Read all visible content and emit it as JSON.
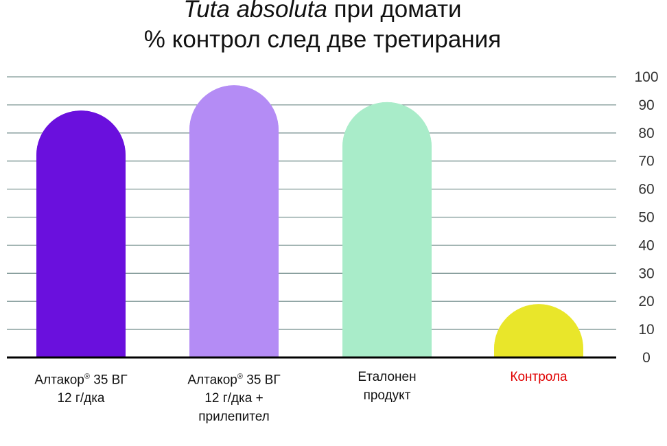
{
  "title": {
    "species": "Tuta absoluta",
    "rest": " при домати",
    "line2": "% контрол след две третирания"
  },
  "chart_data": {
    "type": "bar",
    "categories": [
      {
        "lines": [
          "Алтакор",
          "12 г/дка"
        ],
        "sup": "®",
        "sup_suffix": " 35 ВГ"
      },
      {
        "lines": [
          "Алтакор",
          "12 г/дка +",
          "прилепител"
        ],
        "sup": "®",
        "sup_suffix": " 35 ВГ"
      },
      {
        "lines": [
          "Еталонен",
          "продукт"
        ]
      },
      {
        "lines": [
          "Контрола"
        ]
      }
    ],
    "values": [
      88,
      97,
      91,
      19
    ],
    "colors": [
      "#6a10dd",
      "#b48cf5",
      "#a9ecc9",
      "#e9e62a"
    ],
    "label_colors": [
      "#111111",
      "#111111",
      "#111111",
      "#e00000"
    ],
    "ylim": [
      0,
      100
    ],
    "yticks": [
      0,
      10,
      20,
      30,
      40,
      50,
      60,
      70,
      80,
      90,
      100
    ],
    "yaxis_position": "right",
    "grid": true
  }
}
